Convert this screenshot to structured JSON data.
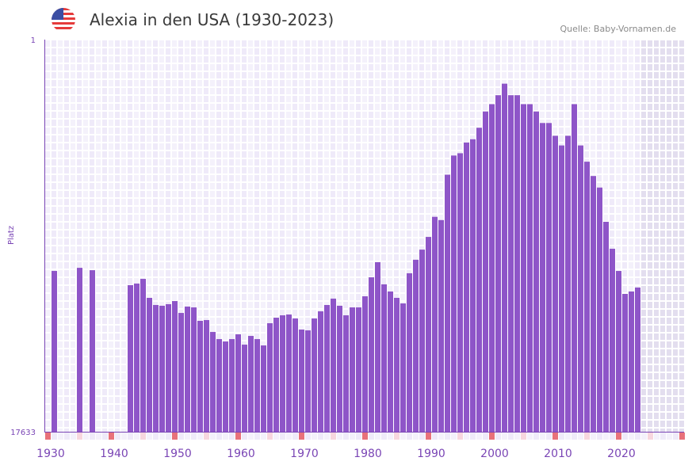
{
  "header": {
    "title": "Alexia in den USA (1930-2023)",
    "source": "Quelle: Baby-Vornamen.de",
    "flag_icon": "us-flag-icon"
  },
  "chart_data": {
    "type": "bar",
    "title": "Alexia in den USA (1930-2023)",
    "xlabel": "",
    "ylabel": "Platz",
    "y_scale": "log",
    "y_inverted": true,
    "ylim": [
      1,
      17633
    ],
    "ytick_labels": [
      "1",
      "17633"
    ],
    "xlim": [
      1929,
      2029
    ],
    "xtick_labels": [
      "1930",
      "1940",
      "1950",
      "1960",
      "1970",
      "1980",
      "1990",
      "2000",
      "2010",
      "2020"
    ],
    "xtick_values": [
      1930,
      1940,
      1950,
      1960,
      1970,
      1980,
      1990,
      2000,
      2010,
      2020
    ],
    "future_from_year": 2023,
    "grid": true,
    "years": [
      1930,
      1931,
      1932,
      1933,
      1934,
      1935,
      1936,
      1937,
      1938,
      1939,
      1940,
      1941,
      1942,
      1943,
      1944,
      1945,
      1946,
      1947,
      1948,
      1949,
      1950,
      1951,
      1952,
      1953,
      1954,
      1955,
      1956,
      1957,
      1958,
      1959,
      1960,
      1961,
      1962,
      1963,
      1964,
      1965,
      1966,
      1967,
      1968,
      1969,
      1970,
      1971,
      1972,
      1973,
      1974,
      1975,
      1976,
      1977,
      1978,
      1979,
      1980,
      1981,
      1982,
      1983,
      1984,
      1985,
      1986,
      1987,
      1988,
      1989,
      1990,
      1991,
      1992,
      1993,
      1994,
      1995,
      1996,
      1997,
      1998,
      1999,
      2000,
      2001,
      2002,
      2003,
      2004,
      2005,
      2006,
      2007,
      2008,
      2009,
      2010,
      2011,
      2012,
      2013,
      2014,
      2015,
      2016,
      2017,
      2018,
      2019,
      2020,
      2021,
      2022
    ],
    "ranks": [
      320,
      null,
      null,
      null,
      296,
      null,
      314,
      null,
      null,
      null,
      null,
      null,
      456,
      438,
      390,
      626,
      748,
      762,
      733,
      678,
      912,
      778,
      794,
      1110,
      1089,
      1465,
      1750,
      1857,
      1750,
      1554,
      2010,
      1617,
      1750,
      2050,
      1178,
      1026,
      967,
      948,
      1047,
      1380,
      1408,
      1047,
      876,
      748,
      638,
      762,
      967,
      794,
      794,
      602,
      375,
      257,
      447,
      534,
      626,
      719,
      339,
      242,
      188,
      137,
      83,
      90,
      29,
      18,
      17,
      13,
      12,
      9,
      6,
      5,
      4,
      3,
      4,
      4,
      5,
      5,
      6,
      8,
      8,
      11,
      14,
      11,
      5,
      14,
      21,
      30,
      40,
      94,
      184,
      320,
      567,
      534,
      484
    ]
  },
  "colors": {
    "bar": "#8e55c8",
    "axis": "#7a45b5",
    "label": "#7a45b5",
    "grid_a": "#efeaf9",
    "grid_b": "#f4f1fb",
    "future": "#e3deef",
    "decade_marker": "#e8717a",
    "half_decade_marker": "#f7d6de"
  }
}
